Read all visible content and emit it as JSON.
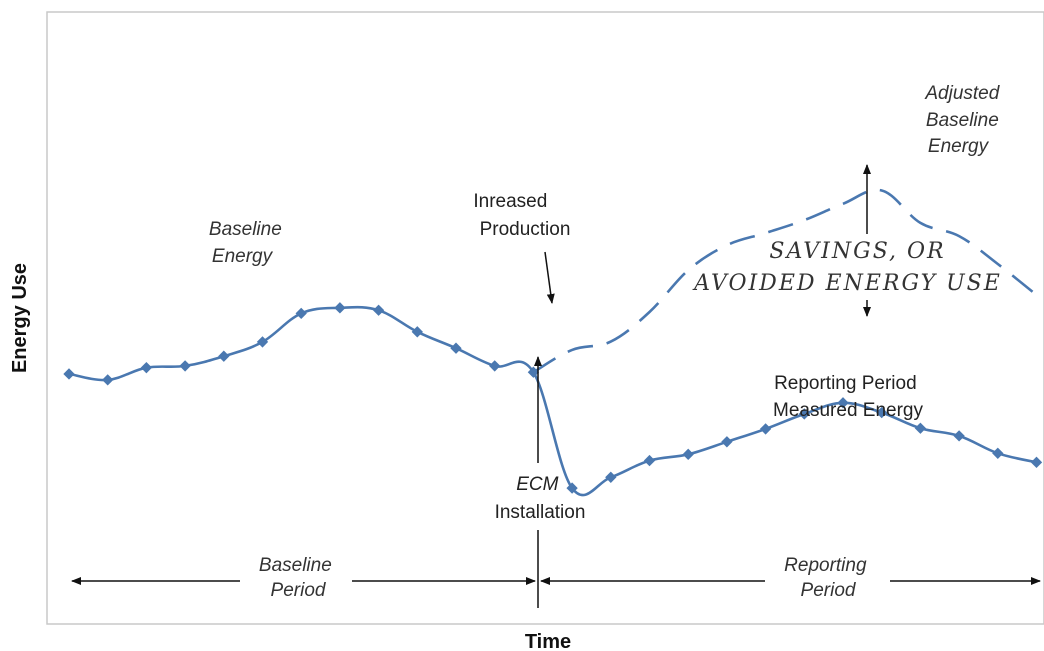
{
  "chart_data": {
    "type": "line",
    "xlabel": "Time",
    "ylabel": "Energy Use",
    "grid": false,
    "ecm_index": 12,
    "series": [
      {
        "style": "solid-with-markers",
        "color": "#4a78b0",
        "x": [
          0,
          1,
          2,
          3,
          4,
          5,
          6,
          7,
          8,
          9,
          10,
          11,
          12,
          13,
          14,
          15,
          16,
          17,
          18,
          19,
          20,
          21,
          22,
          23,
          24,
          25
        ],
        "y": [
          59.5,
          57.8,
          61.3,
          61.8,
          64.6,
          68.7,
          76.9,
          78.5,
          77.8,
          71.6,
          66.9,
          61.8,
          60.0,
          26.7,
          29.8,
          34.6,
          36.4,
          40.0,
          43.7,
          48.0,
          51.2,
          48.4,
          43.9,
          41.7,
          36.7,
          34.1
        ]
      },
      {
        "style": "dashed",
        "color": "#4a78b0",
        "x": [
          12,
          13,
          14,
          15,
          16,
          17,
          18,
          19,
          20,
          21,
          22,
          23,
          24,
          25
        ],
        "y": [
          60.0,
          66.4,
          68.8,
          77.3,
          89.3,
          96.5,
          100.0,
          103.7,
          108.4,
          112.2,
          102.9,
          99.1,
          91.1,
          82.2
        ]
      }
    ],
    "annotations": {
      "baseline_energy": [
        "Baseline",
        "Energy"
      ],
      "adjusted_baseline": [
        "Adjusted",
        "Baseline",
        "Energy"
      ],
      "increased_production": [
        "Inreased",
        "Production"
      ],
      "savings": [
        "SAVINGS, OR",
        "AVOIDED ENERGY USE"
      ],
      "reporting_measured": [
        "Reporting Period",
        "Measured Energy"
      ],
      "ecm_installation": [
        "ECM",
        "Installation"
      ],
      "baseline_period": [
        "Baseline",
        "Period"
      ],
      "reporting_period": [
        "Reporting",
        "Period"
      ]
    }
  }
}
